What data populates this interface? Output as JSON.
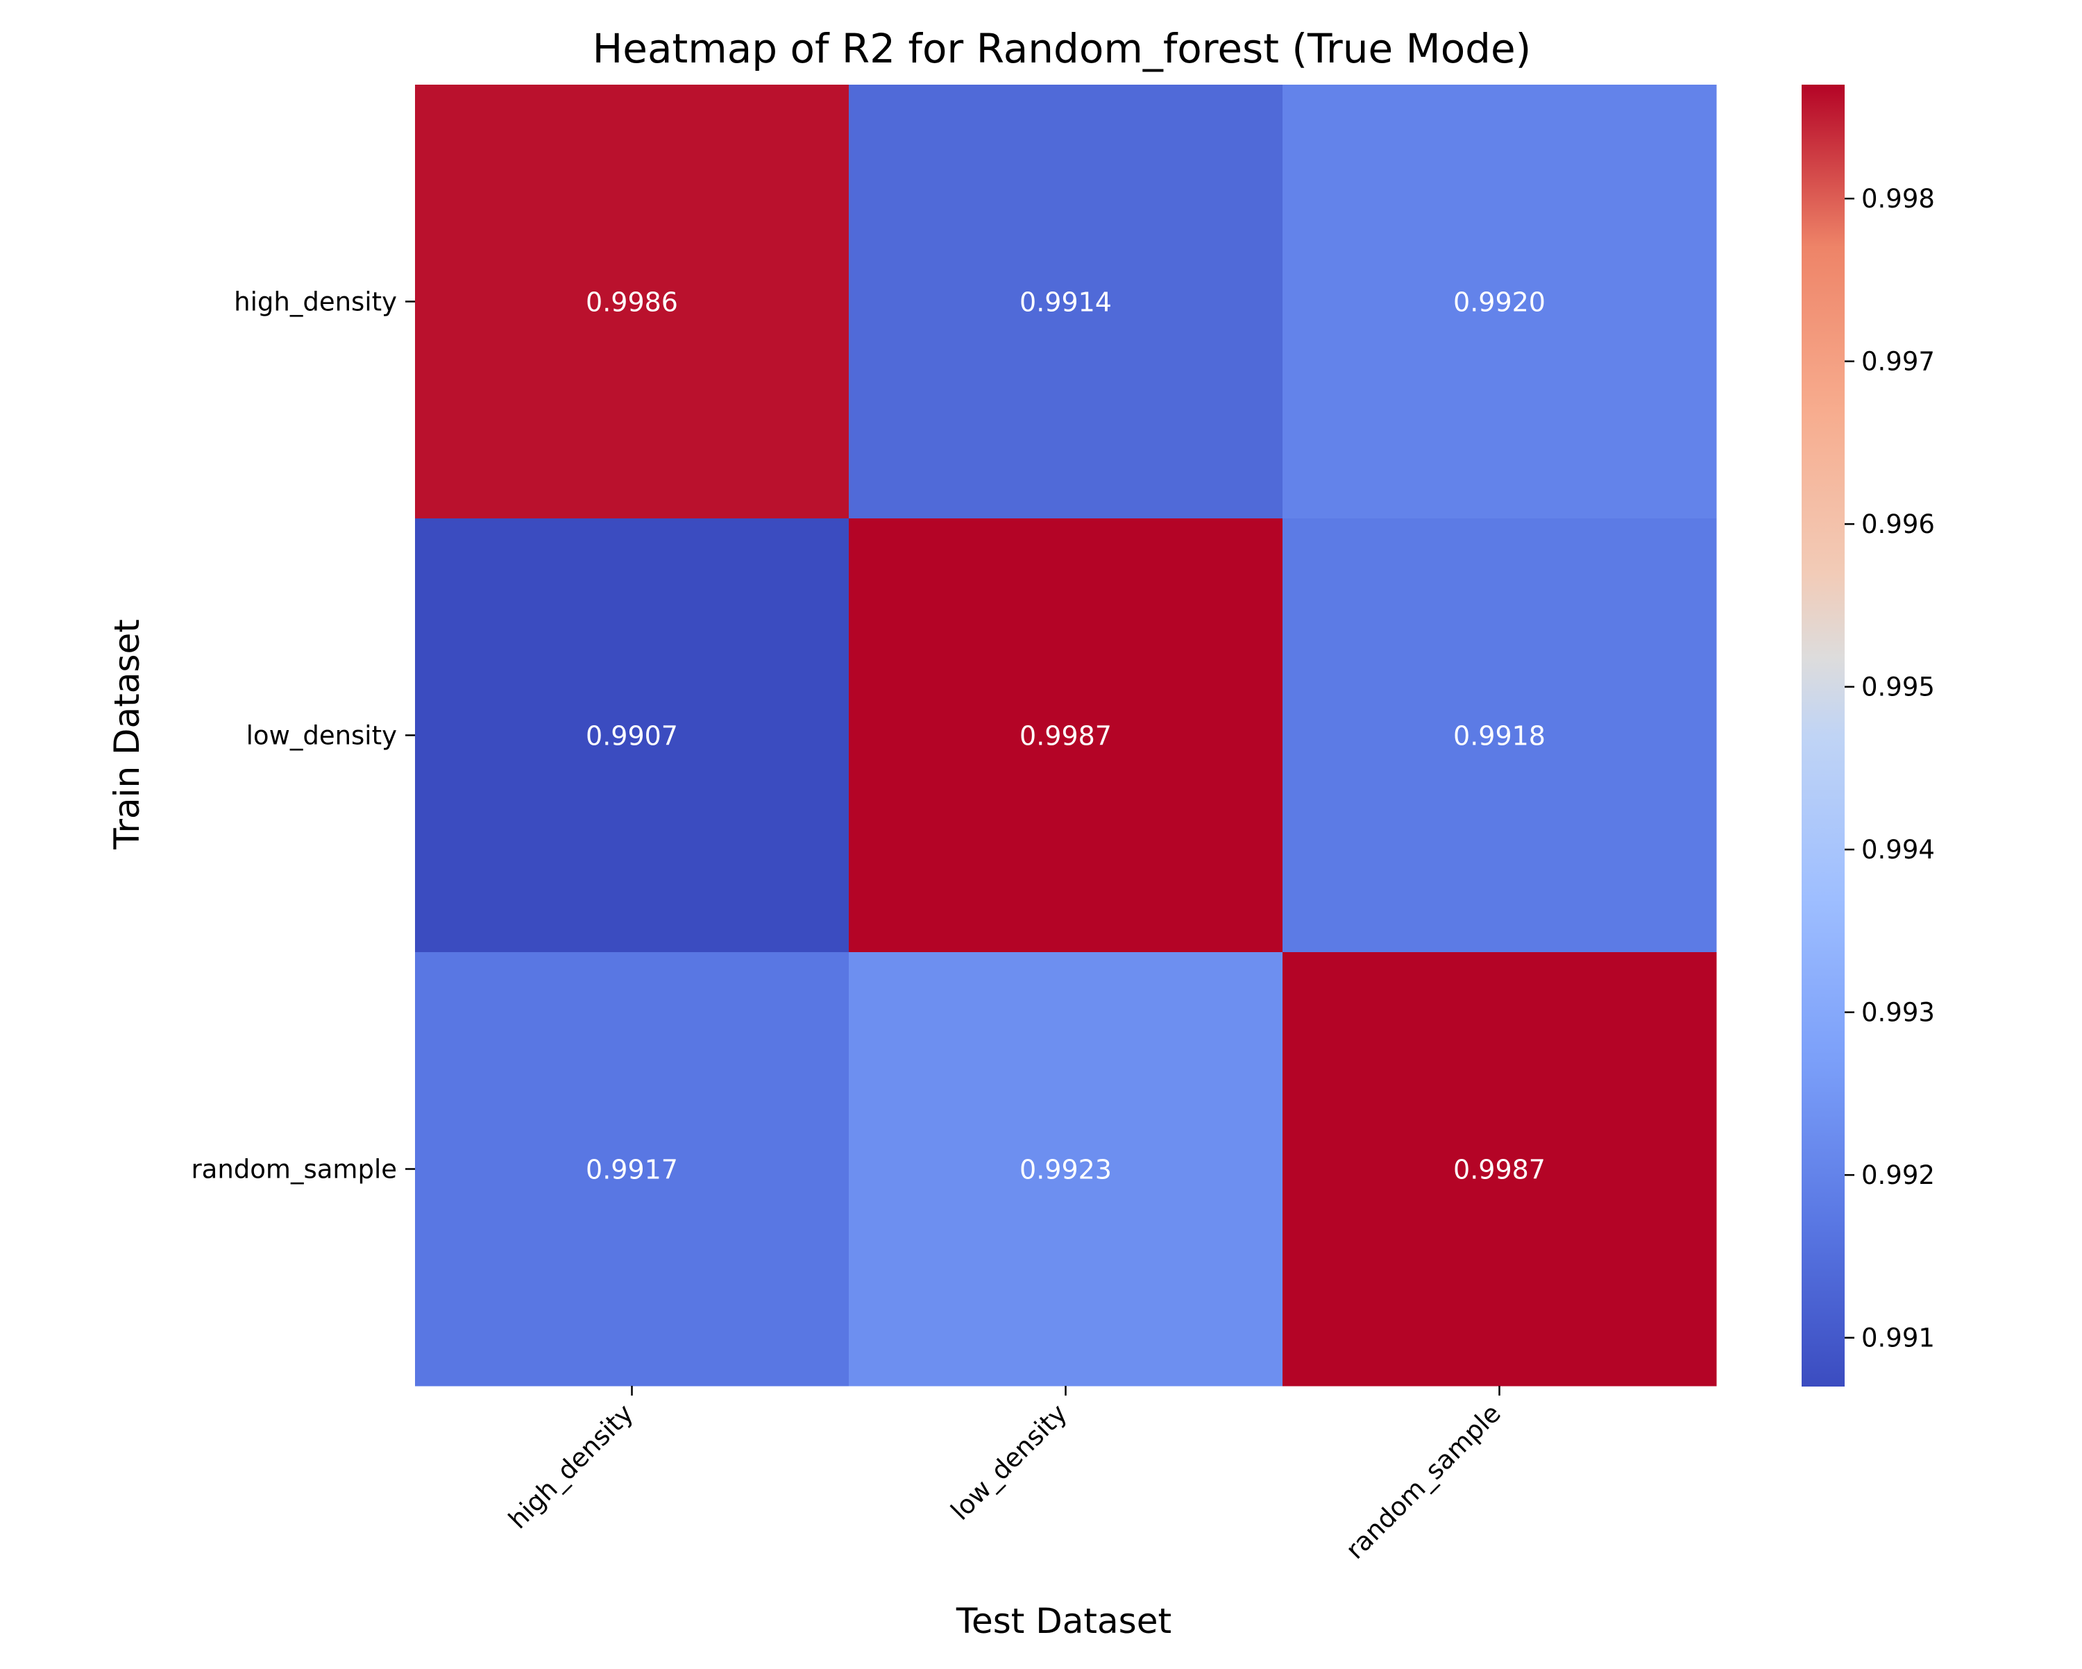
{
  "chart_data": {
    "type": "heatmap",
    "title": "Heatmap of R2 for Random_forest (True Mode)",
    "xlabel": "Test Dataset",
    "ylabel": "Train Dataset",
    "x_categories": [
      "high_density",
      "low_density",
      "random_sample"
    ],
    "y_categories": [
      "high_density",
      "low_density",
      "random_sample"
    ],
    "values": [
      [
        0.9986,
        0.9914,
        0.992
      ],
      [
        0.9907,
        0.9987,
        0.9918
      ],
      [
        0.9917,
        0.9923,
        0.9987
      ]
    ],
    "cell_labels": [
      [
        "0.9986",
        "0.9914",
        "0.9920"
      ],
      [
        "0.9907",
        "0.9987",
        "0.9918"
      ],
      [
        "0.9917",
        "0.9923",
        "0.9987"
      ]
    ],
    "colormap": "coolwarm",
    "color_range": [
      0.9907,
      0.9987
    ],
    "colorbar_ticks": [
      "0.991",
      "0.992",
      "0.993",
      "0.994",
      "0.995",
      "0.996",
      "0.997",
      "0.998"
    ],
    "colorbar_tick_values": [
      0.991,
      0.992,
      0.993,
      0.994,
      0.995,
      0.996,
      0.997,
      0.998
    ],
    "annotation_color": "#ffffff",
    "grid": false
  }
}
